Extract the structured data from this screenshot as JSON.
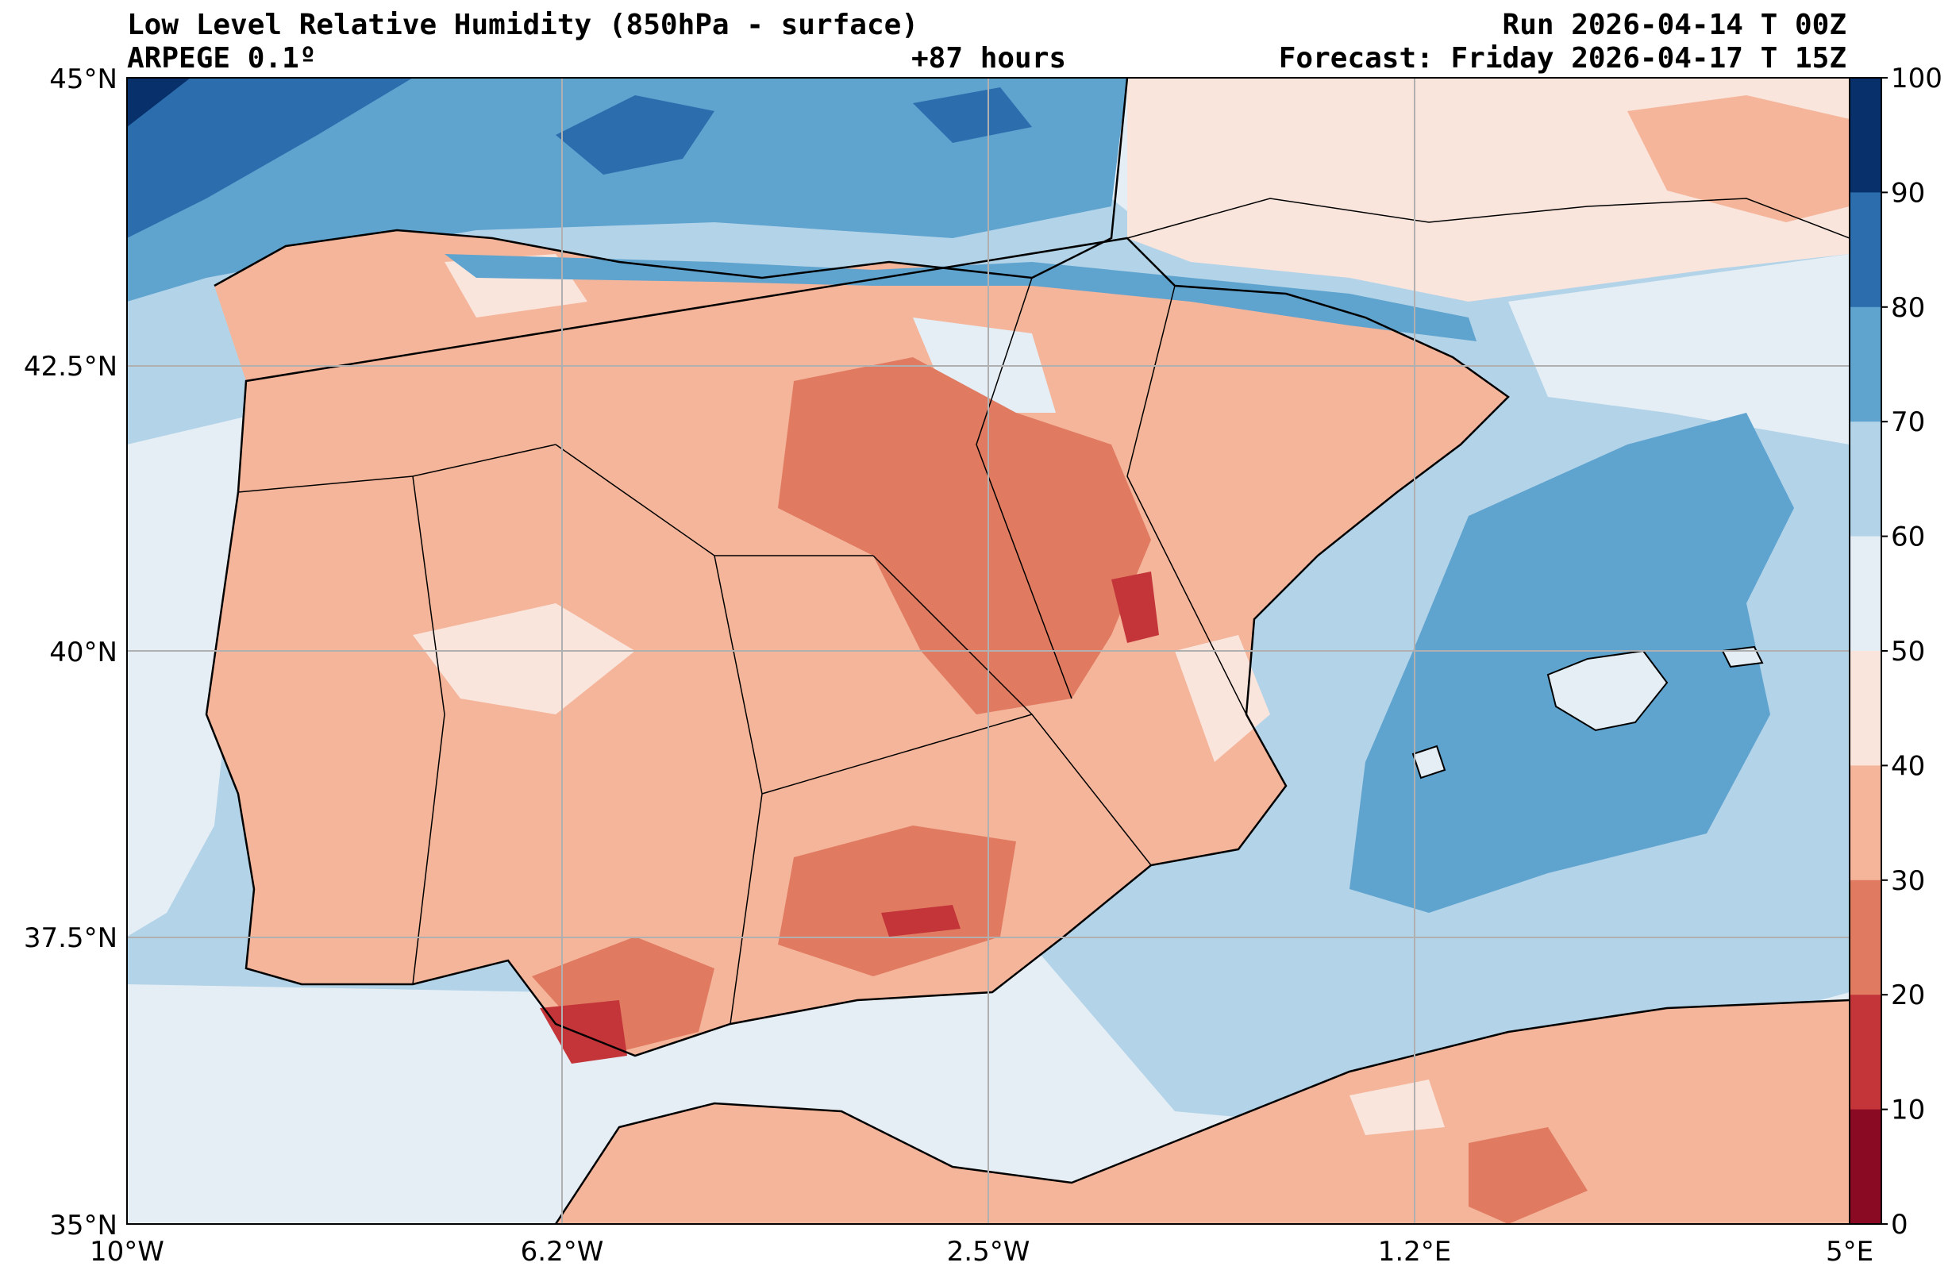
{
  "header": {
    "title": "Low Level Relative Humidity (850hPa - surface)",
    "model": "ARPEGE 0.1º",
    "lead_time": "+87 hours",
    "run": "Run 2026-04-14 T 00Z",
    "forecast": "Forecast: Friday 2026-04-17 T 15Z"
  },
  "map": {
    "lat_labels": [
      "45°N",
      "42.5°N",
      "40°N",
      "37.5°N",
      "35°N"
    ],
    "lon_labels": [
      "10°W",
      "6.2°W",
      "2.5°W",
      "1.2°E",
      "5°E"
    ],
    "variable": "relative humidity",
    "units": "%",
    "sea_color": "#b3d3e8",
    "coast_color": "#000000"
  },
  "colorbar": {
    "labels": [
      "100",
      "90",
      "80",
      "70",
      "60",
      "50",
      "40",
      "30",
      "20",
      "10",
      "0"
    ],
    "bins_top_to_bottom": [
      "#08306b",
      "#2c6dae",
      "#5fa3cf",
      "#b3d3e8",
      "#e5eef5",
      "#fae5dd",
      "#f4b59a",
      "#e07b62",
      "#c4353a",
      "#8b0a23"
    ]
  }
}
